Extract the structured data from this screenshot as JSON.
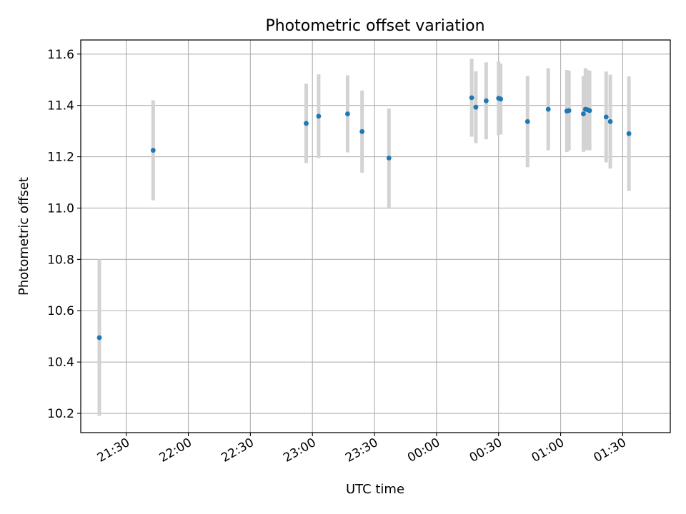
{
  "chart_data": {
    "type": "scatter",
    "title": "Photometric offset variation",
    "xlabel": "UTC time",
    "ylabel": "Photometric offset",
    "x_tick_labels": [
      "21:30",
      "22:00",
      "22:30",
      "23:00",
      "23:30",
      "00:00",
      "00:30",
      "01:00",
      "01:30"
    ],
    "x_ticks": [
      "21:30",
      "22:00",
      "22:30",
      "23:00",
      "23:30",
      "00:00",
      "00:30",
      "01:00",
      "01:30"
    ],
    "xlim": [
      "21:08",
      "01:53"
    ],
    "y_ticks": [
      10.2,
      10.4,
      10.6,
      10.8,
      11.0,
      11.2,
      11.4,
      11.6
    ],
    "y_tick_labels": [
      "10.2",
      "10.4",
      "10.6",
      "10.8",
      "11.0",
      "11.2",
      "11.4",
      "11.6"
    ],
    "ylim": [
      10.125,
      11.655
    ],
    "grid": true,
    "colors": {
      "marker": "#1f77b4",
      "errorbar": "#d3d3d3",
      "grid": "#b0b0b0"
    },
    "points": [
      {
        "x": "21:17",
        "y": 10.495,
        "err": 0.305
      },
      {
        "x": "21:43",
        "y": 11.225,
        "err": 0.195
      },
      {
        "x": "22:57",
        "y": 11.33,
        "err": 0.155
      },
      {
        "x": "23:03",
        "y": 11.358,
        "err": 0.163
      },
      {
        "x": "23:17",
        "y": 11.367,
        "err": 0.15
      },
      {
        "x": "23:24",
        "y": 11.298,
        "err": 0.16
      },
      {
        "x": "23:37",
        "y": 11.195,
        "err": 0.193
      },
      {
        "x": "00:17",
        "y": 11.43,
        "err": 0.152
      },
      {
        "x": "00:19",
        "y": 11.393,
        "err": 0.14
      },
      {
        "x": "00:24",
        "y": 11.418,
        "err": 0.15
      },
      {
        "x": "00:30",
        "y": 11.428,
        "err": 0.143
      },
      {
        "x": "00:31",
        "y": 11.425,
        "err": 0.138
      },
      {
        "x": "00:44",
        "y": 11.337,
        "err": 0.178
      },
      {
        "x": "00:54",
        "y": 11.385,
        "err": 0.16
      },
      {
        "x": "01:03",
        "y": 11.378,
        "err": 0.16
      },
      {
        "x": "01:04",
        "y": 11.38,
        "err": 0.155
      },
      {
        "x": "01:11",
        "y": 11.367,
        "err": 0.148
      },
      {
        "x": "01:12",
        "y": 11.385,
        "err": 0.16
      },
      {
        "x": "01:13",
        "y": 11.383,
        "err": 0.155
      },
      {
        "x": "01:14",
        "y": 11.38,
        "err": 0.155
      },
      {
        "x": "01:22",
        "y": 11.355,
        "err": 0.177
      },
      {
        "x": "01:24",
        "y": 11.337,
        "err": 0.183
      },
      {
        "x": "01:33",
        "y": 11.29,
        "err": 0.223
      }
    ]
  }
}
